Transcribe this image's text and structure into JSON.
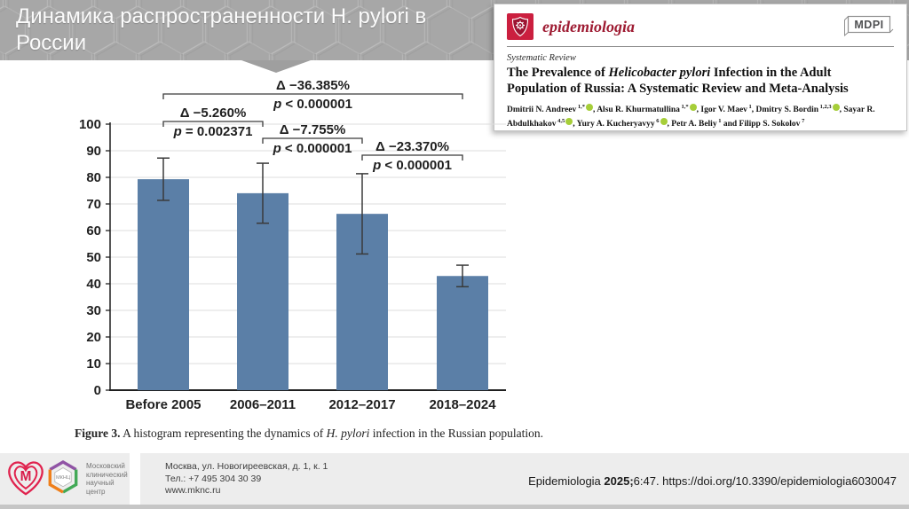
{
  "slide": {
    "title": "Динамика распространенности H. pylori в России"
  },
  "journal_card": {
    "journal_name": "epidemiologia",
    "publisher": "MDPI",
    "article_type": "Systematic Review",
    "title_prefix": "The Prevalence of ",
    "title_italic": "Helicobacter pylori",
    "title_suffix": " Infection in the Adult Population of Russia: A Systematic Review and Meta-Analysis",
    "accent_color": "#9e1b32",
    "orcid_color": "#a6ce39",
    "authors": [
      {
        "name": "Dmitrii N. Andreev",
        "sup": "1,*",
        "orcid": true
      },
      {
        "name": "Alsu R. Khurmatullina",
        "sup": "1,*",
        "orcid": true
      },
      {
        "name": "Igor V. Maev",
        "sup": "1",
        "orcid": false
      },
      {
        "name": "Dmitry S. Bordin",
        "sup": "1,2,3",
        "orcid": true
      },
      {
        "name": "Sayar R. Abdulkhakov",
        "sup": "4,5",
        "orcid": true
      },
      {
        "name": "Yury A. Kucheryavyy",
        "sup": "6",
        "orcid": true
      },
      {
        "name": "Petr A. Beliy",
        "sup": "1",
        "orcid": false
      },
      {
        "name": "Filipp S. Sokolov",
        "sup": "7",
        "orcid": false
      }
    ]
  },
  "chart_data": {
    "type": "bar",
    "title": "",
    "xlabel": "",
    "ylabel": "",
    "categories": [
      "Before 2005",
      "2006–2011",
      "2012–2017",
      "2018–2024"
    ],
    "values": [
      79.3,
      74.04,
      66.28,
      42.92
    ],
    "error_low": [
      71.36,
      62.76,
      51.2,
      38.89
    ],
    "error_high": [
      87.25,
      85.31,
      81.37,
      46.98
    ],
    "ylim": [
      0,
      100
    ],
    "ytick_step": 10,
    "grid": true,
    "legend": false,
    "bar_color": "#5b7fa7",
    "comparisons": [
      {
        "from": 0,
        "to": 3,
        "level": 0,
        "delta": "Δ −36.385%",
        "p": "p < 0.000001"
      },
      {
        "from": 0,
        "to": 1,
        "level": 1,
        "delta": "Δ −5.260%",
        "p": "p = 0.002371"
      },
      {
        "from": 1,
        "to": 2,
        "level": 2,
        "delta": "Δ −7.755%",
        "p": "p < 0.000001"
      },
      {
        "from": 2,
        "to": 3,
        "level": 3,
        "delta": "Δ −23.370%",
        "p": "p < 0.000001"
      }
    ]
  },
  "caption": {
    "label": "Figure 3.",
    "text1": " A histogram representing the dynamics of ",
    "species": "H. pylori",
    "text2": " infection in the Russian population."
  },
  "footer": {
    "org_letter": "М",
    "org_abbr": "МКНЦ",
    "org_name_lines": [
      "Московский",
      "клинический",
      "научный центр"
    ],
    "address_lines": [
      "Москва, ул. Новогиреевская, д. 1, к. 1",
      "Тел.: +7 495 304 30 39",
      "www.mknc.ru"
    ],
    "citation_journal": "Epidemiologia ",
    "citation_year": "2025;",
    "citation_rest": "6:47. https://doi.org/10.3390/epidemiologia6030047"
  }
}
